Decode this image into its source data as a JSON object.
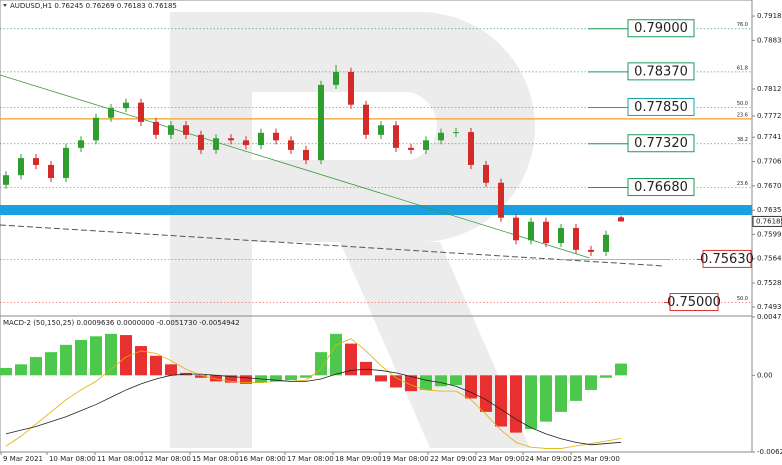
{
  "chart_data": [
    {
      "type": "candlestick",
      "header": "AUDUSD,H1  0.76245 0.76269 0.76183 0.76185",
      "up_color": "#2e9e2e",
      "down_color": "#d42a2a",
      "ohlc": [
        [
          0.7672,
          0.7692,
          0.7666,
          0.7686
        ],
        [
          0.7686,
          0.7717,
          0.768,
          0.7711
        ],
        [
          0.7711,
          0.7717,
          0.7695,
          0.7701
        ],
        [
          0.7701,
          0.7707,
          0.7676,
          0.7682
        ],
        [
          0.7682,
          0.7732,
          0.7676,
          0.7726
        ],
        [
          0.7726,
          0.7743,
          0.772,
          0.7737
        ],
        [
          0.7737,
          0.7776,
          0.7731,
          0.777
        ],
        [
          0.777,
          0.779,
          0.7764,
          0.7784
        ],
        [
          0.7784,
          0.7798,
          0.7778,
          0.7792
        ],
        [
          0.7792,
          0.7798,
          0.7758,
          0.7764
        ],
        [
          0.7764,
          0.777,
          0.7739,
          0.7745
        ],
        [
          0.7745,
          0.7765,
          0.7739,
          0.7759
        ],
        [
          0.7759,
          0.7765,
          0.7739,
          0.7745
        ],
        [
          0.7745,
          0.7751,
          0.7717,
          0.7723
        ],
        [
          0.7723,
          0.7746,
          0.7717,
          0.774
        ],
        [
          0.774,
          0.7746,
          0.7731,
          0.7737
        ],
        [
          0.7737,
          0.7743,
          0.7724,
          0.773
        ],
        [
          0.773,
          0.7754,
          0.7724,
          0.7748
        ],
        [
          0.7748,
          0.7754,
          0.7731,
          0.7737
        ],
        [
          0.7737,
          0.7743,
          0.7717,
          0.7723
        ],
        [
          0.7723,
          0.7729,
          0.7702,
          0.7708
        ],
        [
          0.7708,
          0.7824,
          0.7702,
          0.7818
        ],
        [
          0.7818,
          0.7847,
          0.7812,
          0.7837
        ],
        [
          0.7837,
          0.7843,
          0.7783,
          0.7789
        ],
        [
          0.7789,
          0.7795,
          0.7739,
          0.7745
        ],
        [
          0.7745,
          0.7765,
          0.7739,
          0.7759
        ],
        [
          0.7759,
          0.7765,
          0.772,
          0.7726
        ],
        [
          0.7726,
          0.7732,
          0.7717,
          0.7723
        ],
        [
          0.7723,
          0.7743,
          0.7717,
          0.7737
        ],
        [
          0.7737,
          0.7754,
          0.7731,
          0.7748
        ],
        [
          0.7748,
          0.7755,
          0.7742,
          0.7749
        ],
        [
          0.7749,
          0.7755,
          0.7695,
          0.7701
        ],
        [
          0.7701,
          0.7707,
          0.7669,
          0.7675
        ],
        [
          0.7675,
          0.7681,
          0.7618,
          0.7624
        ],
        [
          0.7624,
          0.763,
          0.7585,
          0.7591
        ],
        [
          0.7591,
          0.7624,
          0.7585,
          0.7618
        ],
        [
          0.7618,
          0.7624,
          0.7581,
          0.7587
        ],
        [
          0.7587,
          0.7615,
          0.7581,
          0.7609
        ],
        [
          0.7609,
          0.7615,
          0.7571,
          0.7577
        ],
        [
          0.7577,
          0.7583,
          0.7568,
          0.7574
        ],
        [
          0.7574,
          0.7605,
          0.7568,
          0.7599
        ],
        [
          0.76245,
          0.76269,
          0.76183,
          0.76185
        ]
      ],
      "ylim": [
        0.74818,
        0.7942
      ],
      "yticks": [
        0.79185,
        {
          "value": 0.7883,
          "label": "0.78830"
        },
        {
          "value": 0.7812,
          "label": "0.78120"
        },
        0.77725,
        0.77415,
        {
          "value": 0.7706,
          "label": "0.77060"
        },
        0.76705,
        {
          "value": 0.7635,
          "label": "0.76350"
        },
        0.75995,
        {
          "value": 0.7564,
          "label": "0.75640"
        },
        0.75285,
        0.74935
      ],
      "xticks": [
        {
          "value": -0.33,
          "label": "9 Mar 2021"
        },
        {
          "value": 2.73,
          "label": "10 Mar 08:00"
        },
        {
          "value": 5.93,
          "label": "11 Mar 08:00"
        },
        {
          "value": 9.07,
          "label": "12 Mar 08:00"
        },
        {
          "value": 12.27,
          "label": "15 Mar 08:00"
        },
        {
          "value": 15.4,
          "label": "16 Mar 08:00"
        },
        {
          "value": 18.6,
          "label": "17 Mar 08:00"
        },
        {
          "value": 21.8,
          "label": "18 Mar 09:00"
        },
        {
          "value": 24.93,
          "label": "19 Mar 08:00"
        },
        {
          "value": 28.13,
          "label": "22 Mar 09:00"
        },
        {
          "value": 31.33,
          "label": "23 Mar 09:00"
        },
        {
          "value": 34.47,
          "label": "24 Mar 09:00"
        },
        {
          "value": 37.67,
          "label": "25 Mar 09:00"
        }
      ],
      "levels": [
        {
          "price": 0.79,
          "label": "0.79000",
          "fib": "76.0",
          "color": "#1a9a5a"
        },
        {
          "price": 0.7837,
          "label": "0.78370",
          "fib": "61.8",
          "color": "#1a9a5a"
        },
        {
          "price": 0.7785,
          "label": "0.77850",
          "fib": "50.0",
          "color": "#1aa0b0"
        },
        {
          "price": 0.7732,
          "label": "0.77320",
          "fib": "38.2",
          "color": "#1a9a5a"
        },
        {
          "price": 0.7668,
          "label": "0.76680",
          "fib": "23.6",
          "color": "#1a9a5a"
        },
        {
          "price": 0.7563,
          "label": "0.75630",
          "color": "#e03030"
        },
        {
          "price": 0.75,
          "label": "0.75000",
          "fib": "50.0",
          "color": "#e03030"
        }
      ],
      "lines": [
        {
          "price": 0.77683,
          "fib": "23.6",
          "color": "#f0a020",
          "style": "solid"
        },
        {
          "price": 0.76352,
          "color": "#1aa0e0",
          "style": "band"
        }
      ],
      "trendlines": [
        {
          "color": "#3a9a3a",
          "style": "solid",
          "start": [
            -0.4,
            0.78325
          ],
          "end": [
            38.9,
            0.75651
          ]
        },
        {
          "color": "#555555",
          "style": "dashed",
          "start": [
            -0.4,
            0.76133
          ],
          "end": [
            43.9,
            0.75534
          ]
        },
        {
          "color": "#e0b000",
          "style": "solid",
          "start": [
            36.9,
            0.7563
          ],
          "end": [
            44.3,
            0.7563
          ]
        }
      ]
    },
    {
      "type": "macd",
      "header": "MACD-2 (50,150,25) 0.0009636 0.0000000 -0.0051730 -0.0054942",
      "up_color": "#4cc94c",
      "down_color": "#e83030",
      "histogram": [
        0.0006,
        0.0009,
        0.0015,
        0.0019,
        0.0025,
        0.0029,
        0.0032,
        0.0034,
        0.0033,
        0.0024,
        0.0016,
        0.0009,
        0.0002,
        -0.0002,
        -0.0005,
        -0.0006,
        -0.0007,
        -0.0006,
        -0.0005,
        -0.0004,
        -0.0002,
        0.0019,
        0.0034,
        0.0026,
        0.0011,
        -0.0005,
        -0.001,
        -0.0013,
        -0.0012,
        -0.0009,
        -0.0008,
        -0.0019,
        -0.003,
        -0.0042,
        -0.0047,
        -0.0044,
        -0.0038,
        -0.003,
        -0.0021,
        -0.0012,
        -0.0002,
        0.0009636
      ],
      "series": [
        {
          "color": "#e0b000",
          "values": [
            -0.0058,
            -0.005,
            -0.004,
            -0.003,
            -0.002,
            -0.0012,
            -0.0005,
            0.0005,
            0.0015,
            0.002,
            0.0018,
            0.0012,
            0.0005,
            0,
            -0.0003,
            -0.0005,
            -0.0006,
            -0.0006,
            -0.0005,
            -0.0005,
            -0.0004,
            0.0005,
            0.0025,
            0.003,
            0.002,
            0.0008,
            -0.0002,
            -0.0008,
            -0.0012,
            -0.0013,
            -0.0013,
            -0.002,
            -0.0032,
            -0.0045,
            -0.0055,
            -0.0059,
            -0.006,
            -0.006,
            -0.0058,
            -0.0056,
            -0.0054,
            -0.005173
          ]
        },
        {
          "color": "#222222",
          "values": [
            -0.0048,
            -0.0045,
            -0.0042,
            -0.0038,
            -0.0034,
            -0.0029,
            -0.0024,
            -0.0018,
            -0.0012,
            -0.0007,
            -0.0003,
            0,
            0.0001,
            0.0001,
            0,
            -0.0001,
            -0.0002,
            -0.0003,
            -0.0004,
            -0.0005,
            -0.0005,
            -0.0003,
            0.0001,
            0.0004,
            0.0005,
            0.0004,
            0.0002,
            -0.0001,
            -0.0004,
            -0.0006,
            -0.0009,
            -0.0014,
            -0.002,
            -0.0028,
            -0.0036,
            -0.0043,
            -0.0048,
            -0.0052,
            -0.0055,
            -0.0057,
            -0.0056,
            -0.0054942
          ]
        }
      ],
      "ylim": [
        -0.0062906,
        0.0047833
      ],
      "yticks": [
        0.0047833,
        {
          "value": 0,
          "label": "0.00"
        },
        -0.0062906
      ]
    }
  ]
}
